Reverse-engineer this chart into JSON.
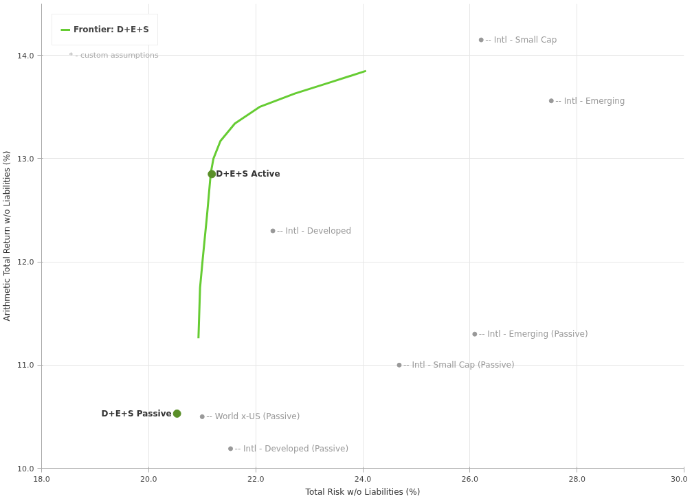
{
  "chart_data": {
    "type": "scatter",
    "xlabel": "Total Risk w/o Liabilities (%)",
    "ylabel": "Arithmetic Total Return w/o Liabilities (%)",
    "xlim": [
      18,
      30
    ],
    "xticks": [
      {
        "value": 18,
        "label": "18.0"
      },
      {
        "value": 20,
        "label": "20.0"
      },
      {
        "value": 22,
        "label": "22.0"
      },
      {
        "value": 24,
        "label": "24.0"
      },
      {
        "value": 26,
        "label": "26.0"
      },
      {
        "value": 28,
        "label": "28.0"
      },
      {
        "value": 30,
        "label": "30.0"
      }
    ],
    "ylim": [
      10,
      14.5
    ],
    "yticks": [
      {
        "value": 10,
        "label": "10.0"
      },
      {
        "value": 11,
        "label": "11.0"
      },
      {
        "value": 12,
        "label": "12.0"
      },
      {
        "value": 13,
        "label": "13.0"
      },
      {
        "value": 14,
        "label": "14.0"
      }
    ],
    "grid": true,
    "legend": "top left",
    "marker": "circle",
    "annotations": [
      "* - custom assumptions"
    ],
    "series": [
      {
        "name": "Frontier: D+E+S",
        "type": "line",
        "marker": "none",
        "color": "#66cc33",
        "x": [
          20.93,
          20.96,
          21.01,
          21.09,
          21.16,
          21.21,
          21.34,
          21.61,
          22.07,
          22.73,
          23.4,
          24.06
        ],
        "values": [
          11.26,
          11.75,
          12.03,
          12.45,
          12.86,
          13.0,
          13.17,
          13.34,
          13.5,
          13.63,
          13.74,
          13.85
        ]
      },
      {
        "name": "D+E+S Active",
        "color": "#5a8f29",
        "x": [
          21.18
        ],
        "values": [
          12.85
        ]
      },
      {
        "name": "D+E+S Passive",
        "color": "#5a8f29",
        "x": [
          20.53
        ],
        "values": [
          10.53
        ]
      },
      {
        "name": "-- Intl - Small Cap",
        "color": "#999999",
        "x": [
          26.21
        ],
        "values": [
          14.15
        ]
      },
      {
        "name": "-- Intl - Emerging",
        "color": "#999999",
        "x": [
          27.52
        ],
        "values": [
          13.56
        ]
      },
      {
        "name": "-- Intl - Developed",
        "color": "#999999",
        "x": [
          22.32
        ],
        "values": [
          12.3
        ]
      },
      {
        "name": "-- Intl - Emerging (Passive)",
        "color": "#999999",
        "x": [
          26.09
        ],
        "values": [
          11.3
        ]
      },
      {
        "name": "-- Intl - Small Cap (Passive)",
        "color": "#999999",
        "x": [
          24.68
        ],
        "values": [
          11.0
        ]
      },
      {
        "name": "-- World x-US (Passive)",
        "color": "#999999",
        "x": [
          21.0
        ],
        "values": [
          10.5
        ]
      },
      {
        "name": "-- Intl - Developed (Passive)",
        "color": "#999999",
        "x": [
          21.53
        ],
        "values": [
          10.19
        ]
      }
    ]
  }
}
